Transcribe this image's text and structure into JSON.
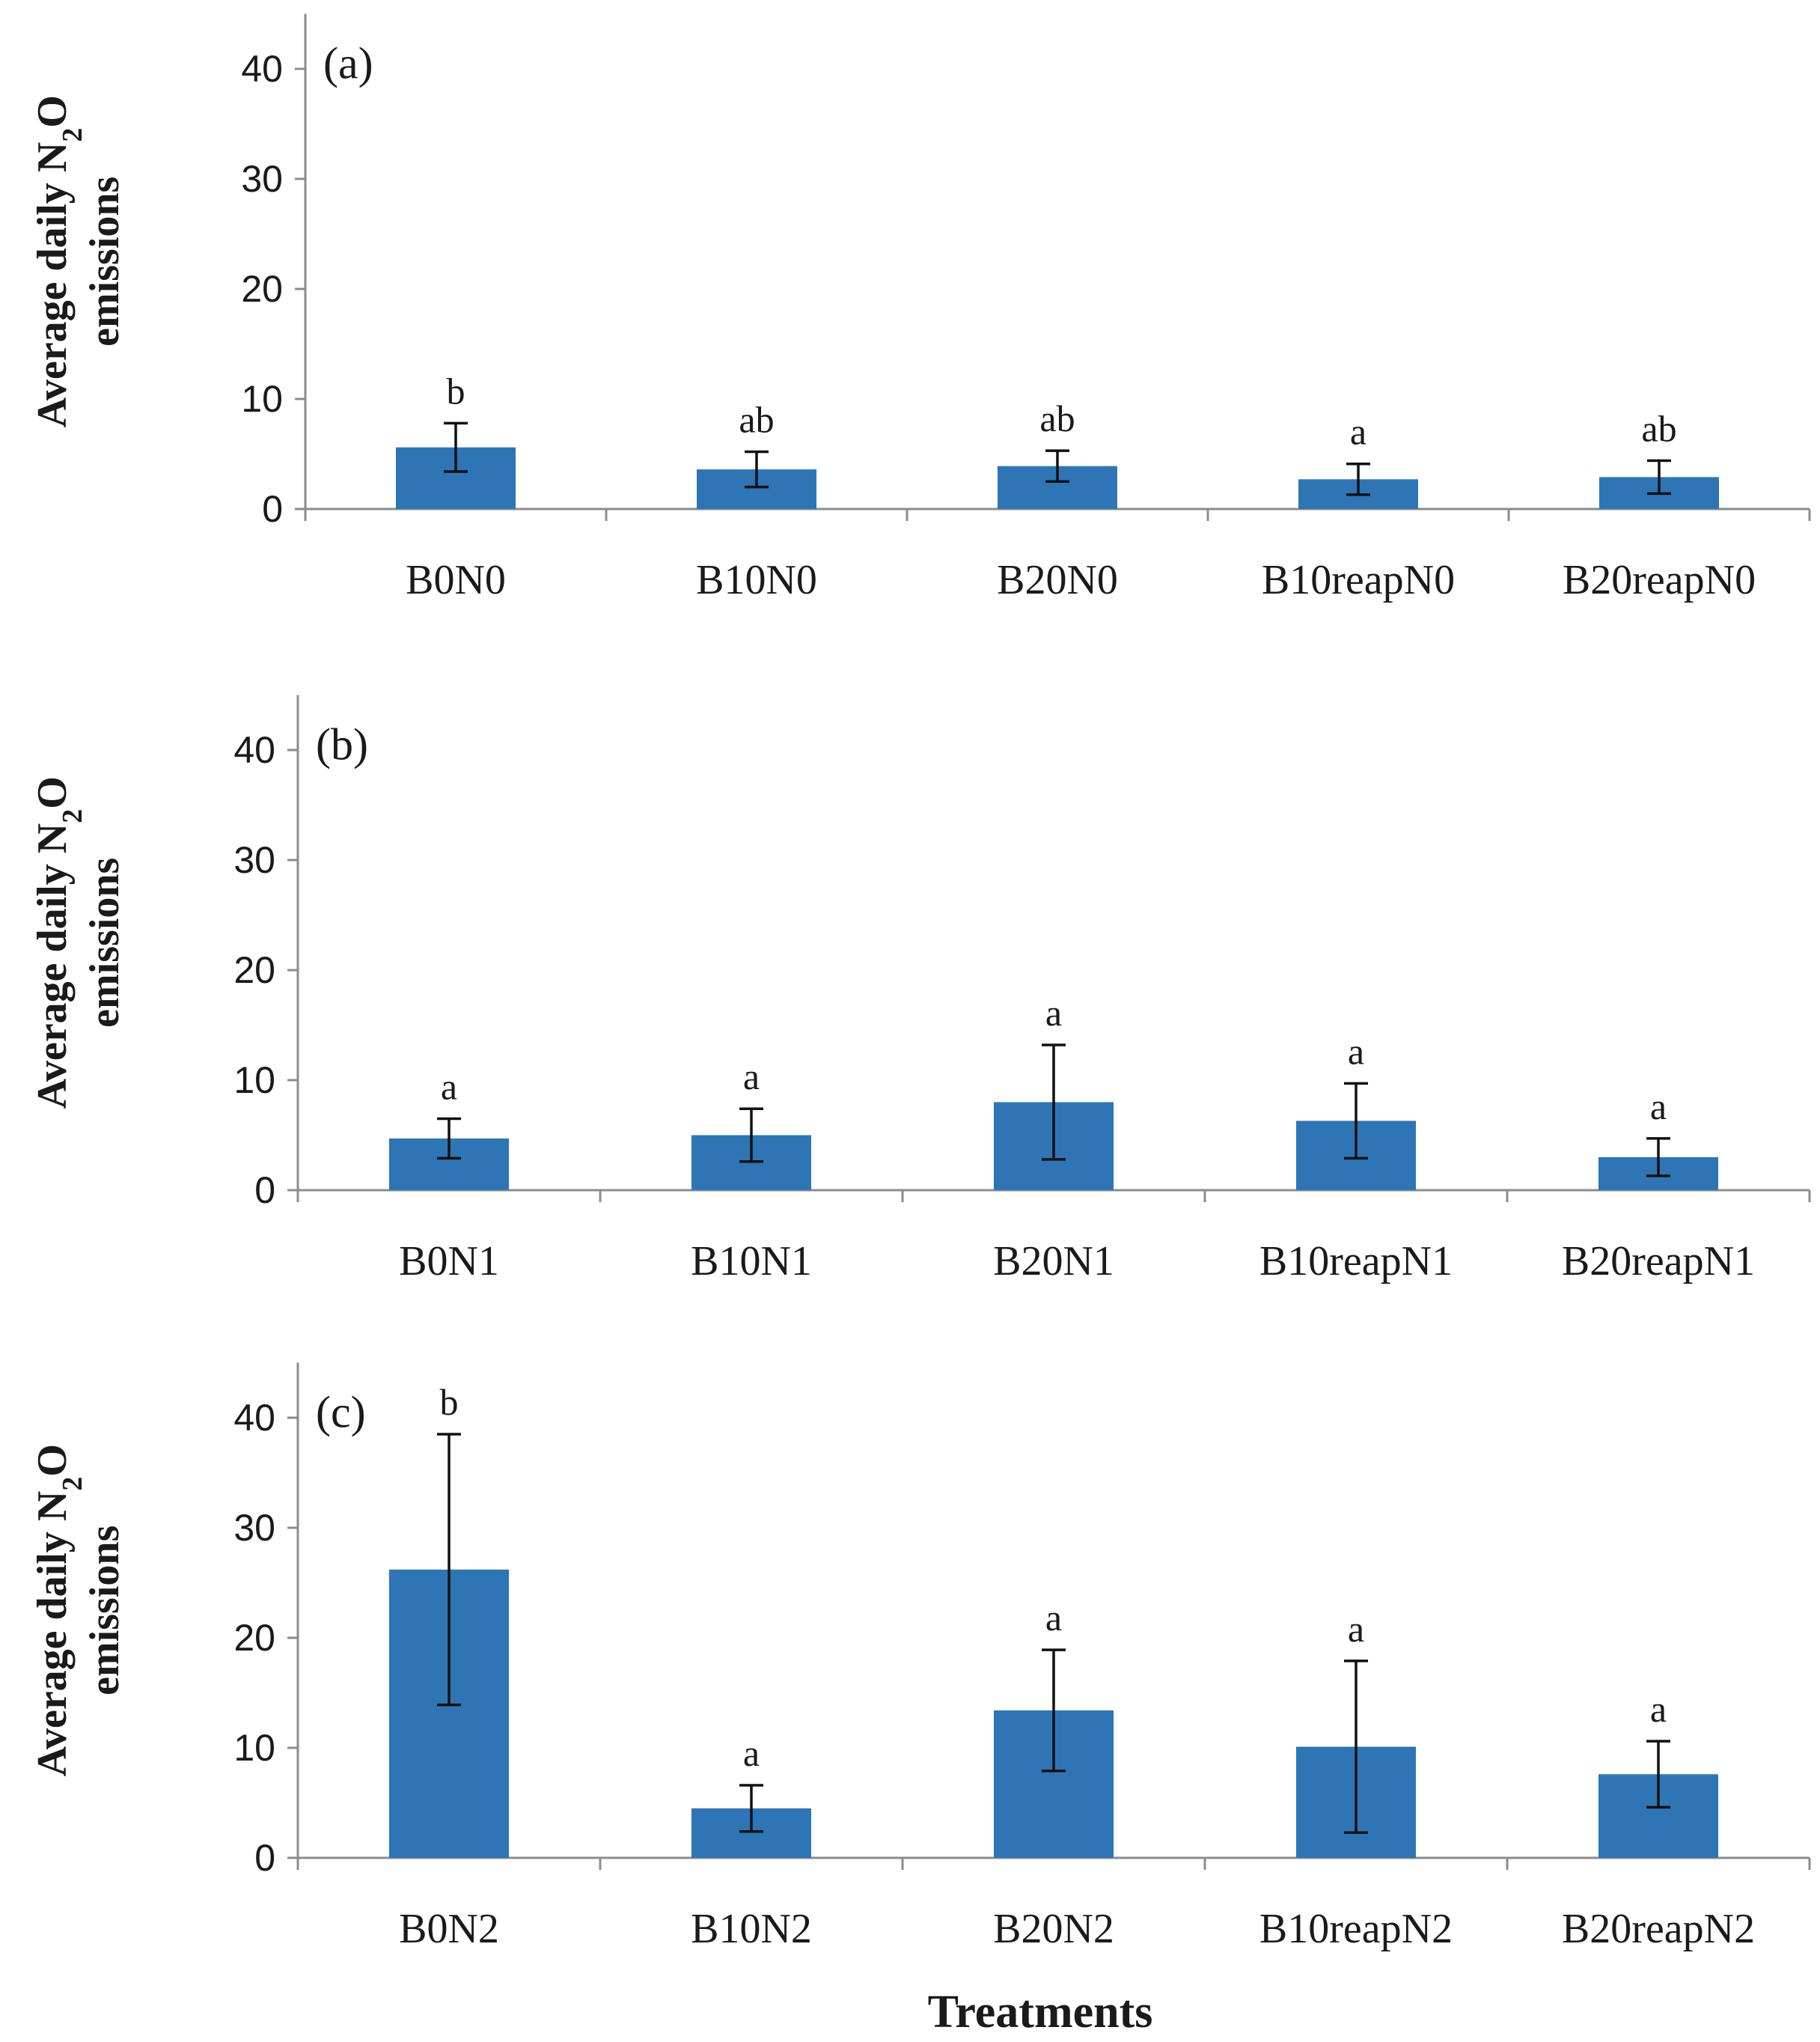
{
  "colors": {
    "bar": "#2E75B6",
    "axis": "#8c8c8c",
    "text": "#1a1a1a"
  },
  "x_axis_title": "Treatments",
  "chart_data": [
    {
      "type": "bar",
      "panel_label": "(a)",
      "ylabel_line1": "Average daily N",
      "ylabel_sub": "2",
      "ylabel_line1_end": "O",
      "ylabel_line2": "emissions",
      "ylim": [
        0,
        45
      ],
      "yticks": [
        0,
        10,
        20,
        30,
        40
      ],
      "categories": [
        "B0N0",
        "B10N0",
        "B20N0",
        "B10reapN0",
        "B20reapN0"
      ],
      "values": [
        5.6,
        3.6,
        3.9,
        2.7,
        2.9
      ],
      "errors": [
        2.2,
        1.6,
        1.4,
        1.4,
        1.5
      ],
      "significance": [
        "b",
        "ab",
        "ab",
        "a",
        "ab"
      ]
    },
    {
      "type": "bar",
      "panel_label": "(b)",
      "ylabel_line1": "Average daily N",
      "ylabel_sub": "2",
      "ylabel_line1_end": "O",
      "ylabel_line2": "emissions",
      "ylim": [
        0,
        45
      ],
      "yticks": [
        0,
        10,
        20,
        30,
        40
      ],
      "categories": [
        "B0N1",
        "B10N1",
        "B20N1",
        "B10reapN1",
        "B20reapN1"
      ],
      "values": [
        4.7,
        5.0,
        8.0,
        6.3,
        3.0
      ],
      "errors": [
        1.8,
        2.4,
        5.2,
        3.4,
        1.7
      ],
      "significance": [
        "a",
        "a",
        "a",
        "a",
        "a"
      ]
    },
    {
      "type": "bar",
      "panel_label": "(c)",
      "ylabel_line1": "Average daily N",
      "ylabel_sub": "2",
      "ylabel_line1_end": "O",
      "ylabel_line2": "emissions",
      "ylim": [
        0,
        45
      ],
      "yticks": [
        0,
        10,
        20,
        30,
        40
      ],
      "categories": [
        "B0N2",
        "B10N2",
        "B20N2",
        "B10reapN2",
        "B20reapN2"
      ],
      "values": [
        26.2,
        4.5,
        13.4,
        10.1,
        7.6
      ],
      "errors": [
        12.3,
        2.1,
        5.5,
        7.8,
        3.0
      ],
      "significance": [
        "b",
        "a",
        "a",
        "a",
        "a"
      ]
    }
  ]
}
